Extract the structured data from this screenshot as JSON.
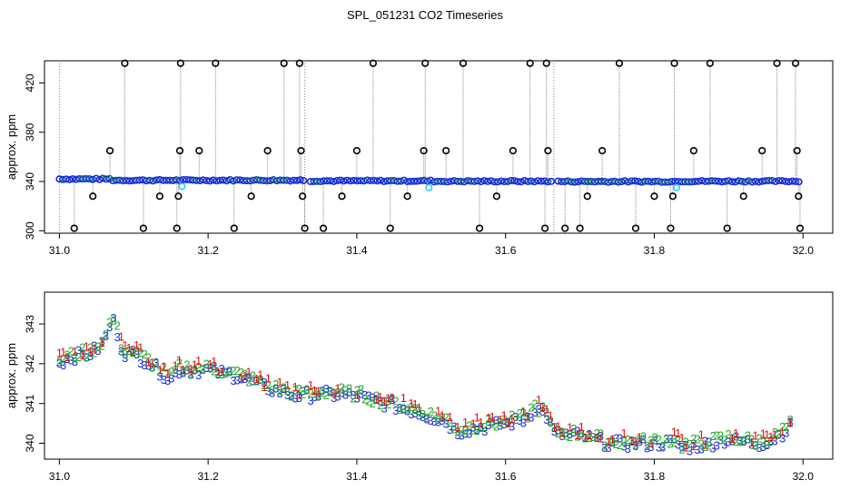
{
  "chart_data": [
    {
      "type": "scatter",
      "title": "SPL_051231  CO2 Timeseries",
      "xlabel": "",
      "ylabel": "approx. ppm",
      "xlim": [
        30.98,
        32.04
      ],
      "ylim": [
        298,
        438
      ],
      "x_ticks": [
        "31.0",
        "31.2",
        "31.4",
        "31.6",
        "31.8",
        "32.0"
      ],
      "y_ticks": [
        "300",
        "340",
        "380",
        "420"
      ],
      "grid": false,
      "colors": {
        "main_points": "#1a2fd6",
        "secondary_points": "#22b04a",
        "highlight_points": "#33ccee",
        "outlier_marker": "#000000",
        "spike_line": "#8a8a8a"
      },
      "series_baseline": {
        "x_start": 31.0,
        "x_end": 31.995,
        "y_segments": [
          {
            "x": [
              31.0,
              31.07
            ],
            "y": 342
          },
          {
            "x": [
              31.07,
              31.33
            ],
            "y": 341
          },
          {
            "x": [
              31.335,
              31.495
            ],
            "y": 340.5
          },
          {
            "x": [
              31.5,
              31.665
            ],
            "y": 340.2
          },
          {
            "x": [
              31.665,
              31.83
            ],
            "y": 340
          },
          {
            "x": [
              31.835,
              31.995
            ],
            "y": 340.2
          }
        ]
      },
      "outliers": [
        {
          "x": 31.02,
          "y": 302
        },
        {
          "x": 31.045,
          "y": 328
        },
        {
          "x": 31.068,
          "y": 365
        },
        {
          "x": 31.088,
          "y": 436
        },
        {
          "x": 31.113,
          "y": 302
        },
        {
          "x": 31.135,
          "y": 328
        },
        {
          "x": 31.158,
          "y": 302
        },
        {
          "x": 31.16,
          "y": 328
        },
        {
          "x": 31.162,
          "y": 365
        },
        {
          "x": 31.163,
          "y": 436
        },
        {
          "x": 31.188,
          "y": 365
        },
        {
          "x": 31.21,
          "y": 436
        },
        {
          "x": 31.235,
          "y": 302
        },
        {
          "x": 31.258,
          "y": 328
        },
        {
          "x": 31.28,
          "y": 365
        },
        {
          "x": 31.302,
          "y": 436
        },
        {
          "x": 31.323,
          "y": 436
        },
        {
          "x": 31.325,
          "y": 365
        },
        {
          "x": 31.327,
          "y": 328
        },
        {
          "x": 31.33,
          "y": 302
        },
        {
          "x": 31.355,
          "y": 302
        },
        {
          "x": 31.38,
          "y": 328
        },
        {
          "x": 31.4,
          "y": 365
        },
        {
          "x": 31.422,
          "y": 436
        },
        {
          "x": 31.445,
          "y": 302
        },
        {
          "x": 31.468,
          "y": 328
        },
        {
          "x": 31.49,
          "y": 365
        },
        {
          "x": 31.492,
          "y": 436
        },
        {
          "x": 31.52,
          "y": 365
        },
        {
          "x": 31.543,
          "y": 436
        },
        {
          "x": 31.565,
          "y": 302
        },
        {
          "x": 31.588,
          "y": 328
        },
        {
          "x": 31.61,
          "y": 365
        },
        {
          "x": 31.633,
          "y": 436
        },
        {
          "x": 31.653,
          "y": 302
        },
        {
          "x": 31.655,
          "y": 436
        },
        {
          "x": 31.657,
          "y": 365
        },
        {
          "x": 31.68,
          "y": 302
        },
        {
          "x": 31.7,
          "y": 302
        },
        {
          "x": 31.71,
          "y": 328
        },
        {
          "x": 31.73,
          "y": 365
        },
        {
          "x": 31.753,
          "y": 436
        },
        {
          "x": 31.775,
          "y": 302
        },
        {
          "x": 31.8,
          "y": 328
        },
        {
          "x": 31.822,
          "y": 302
        },
        {
          "x": 31.825,
          "y": 328
        },
        {
          "x": 31.827,
          "y": 436
        },
        {
          "x": 31.853,
          "y": 365
        },
        {
          "x": 31.875,
          "y": 436
        },
        {
          "x": 31.898,
          "y": 302
        },
        {
          "x": 31.92,
          "y": 328
        },
        {
          "x": 31.945,
          "y": 365
        },
        {
          "x": 31.965,
          "y": 436
        },
        {
          "x": 31.99,
          "y": 436
        },
        {
          "x": 31.992,
          "y": 365
        },
        {
          "x": 31.994,
          "y": 328
        },
        {
          "x": 31.996,
          "y": 302
        }
      ],
      "highlights": [
        {
          "x": 31.165,
          "y": 336
        },
        {
          "x": 31.497,
          "y": 335
        },
        {
          "x": 31.83,
          "y": 335
        }
      ]
    },
    {
      "type": "scatter",
      "title": "",
      "xlabel": "",
      "ylabel": "approx. ppm",
      "xlim": [
        30.98,
        32.04
      ],
      "ylim": [
        339.6,
        343.8
      ],
      "x_ticks": [
        "31.0",
        "31.2",
        "31.4",
        "31.6",
        "31.8",
        "32.0"
      ],
      "y_ticks": [
        "340",
        "341",
        "342",
        "343"
      ],
      "grid": false,
      "series": [
        {
          "marker": "1",
          "color": "#dd1111",
          "offset": 0.13
        },
        {
          "marker": "2",
          "color": "#22aa22",
          "offset": 0.06
        },
        {
          "marker": "3",
          "color": "#1a2fd6",
          "offset": 0.0
        }
      ],
      "trend": {
        "x": [
          31.0,
          31.02,
          31.04,
          31.055,
          31.065,
          31.07,
          31.075,
          31.085,
          31.1,
          31.12,
          31.14,
          31.15,
          31.16,
          31.2,
          31.24,
          31.28,
          31.32,
          31.36,
          31.4,
          31.44,
          31.48,
          31.52,
          31.535,
          31.56,
          31.6,
          31.625,
          31.64,
          31.655,
          31.665,
          31.7,
          31.74,
          31.78,
          31.8,
          31.83,
          31.835,
          31.86,
          31.9,
          31.94,
          31.96,
          31.985
        ],
        "y": [
          342.05,
          342.2,
          342.25,
          342.45,
          342.75,
          343.15,
          343.0,
          342.3,
          342.25,
          342.05,
          341.75,
          341.6,
          341.85,
          341.85,
          341.7,
          341.4,
          341.2,
          341.25,
          341.2,
          341.0,
          340.8,
          340.55,
          340.3,
          340.4,
          340.5,
          340.6,
          340.9,
          340.7,
          340.25,
          340.2,
          340.0,
          340.0,
          340.0,
          340.05,
          339.9,
          339.95,
          340.1,
          340.0,
          340.1,
          340.45
        ]
      }
    }
  ]
}
